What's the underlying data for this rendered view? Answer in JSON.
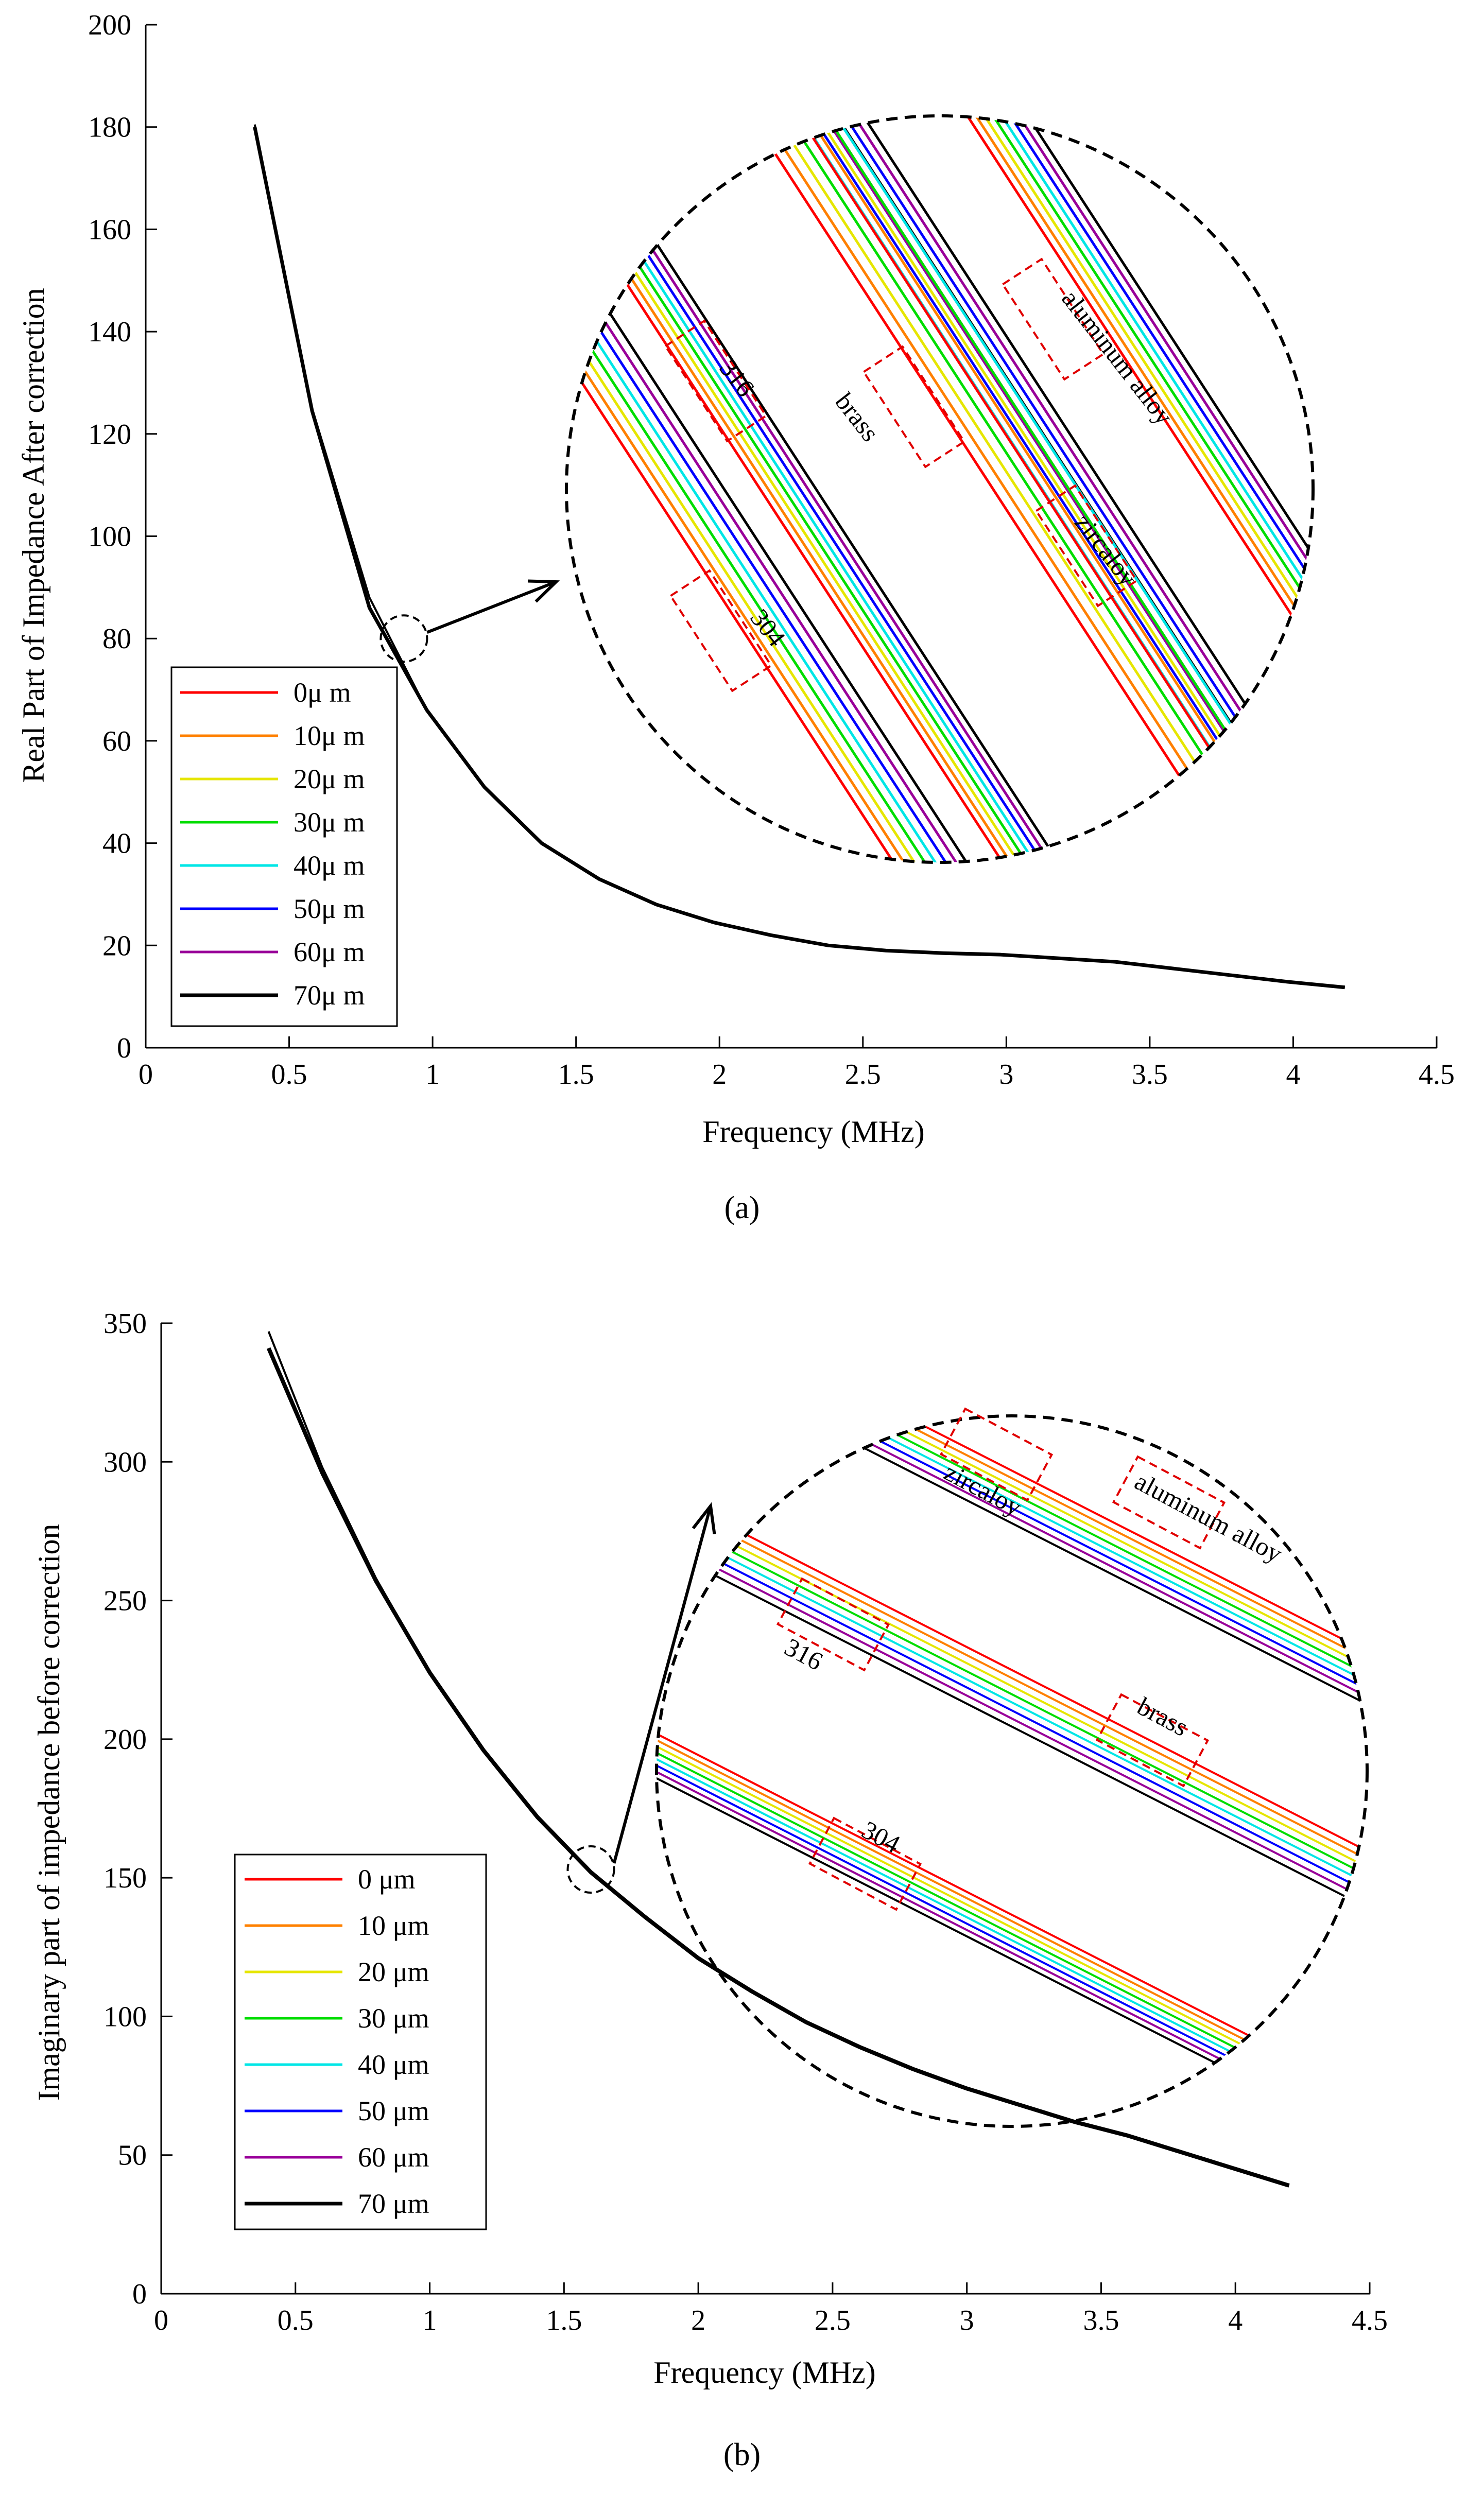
{
  "legend": {
    "a": [
      "0μ m",
      "10μ m",
      "20μ m",
      "30μ m",
      "40μ m",
      "50μ m",
      "60μ m",
      "70μ m"
    ],
    "b": [
      "0 μm",
      "10 μm",
      "20 μm",
      "30 μm",
      "40 μm",
      "50 μm",
      "60 μm",
      "70 μm"
    ]
  },
  "colors": [
    "#ff0000",
    "#ff8000",
    "#e6e600",
    "#00dd00",
    "#00e6e6",
    "#0000ff",
    "#990099",
    "#000000"
  ],
  "materials": [
    "aluminum alloy",
    "zircaloy",
    "316",
    "304",
    "brass"
  ],
  "chart_data": [
    {
      "type": "line",
      "caption": "(a)",
      "title": "",
      "xlabel": "Frequency (MHz)",
      "ylabel": "Real Part of Impedance After correction",
      "xlim": [
        0,
        4.5
      ],
      "ylim": [
        0,
        200
      ],
      "xticks": [
        0,
        0.5,
        1,
        1.5,
        2,
        2.5,
        3,
        3.5,
        4,
        4.5
      ],
      "xtick_labels": [
        "0",
        "0.5",
        "1",
        "1.5",
        "2",
        "2.5",
        "3",
        "3.5",
        "4",
        "4.5"
      ],
      "yticks": [
        0,
        20,
        40,
        60,
        80,
        100,
        120,
        140,
        160,
        180,
        200
      ],
      "ytick_labels": [
        "0",
        "20",
        "40",
        "60",
        "80",
        "100",
        "120",
        "140",
        "160",
        "180",
        "200"
      ],
      "x": [
        0.38,
        0.58,
        0.78,
        0.98,
        1.18,
        1.38,
        1.58,
        1.78,
        1.98,
        2.18,
        2.38,
        2.58,
        2.78,
        2.98,
        3.18,
        3.38,
        3.58,
        3.78,
        3.98,
        4.18
      ],
      "series": [
        {
          "name": "0μ m",
          "values": [
            180.5,
            125,
            88,
            66,
            51,
            40,
            33,
            28,
            24.5,
            22,
            20,
            19,
            18.5,
            18.2,
            17.5,
            16.8,
            15.5,
            14.2,
            12.9,
            11.8
          ]
        },
        {
          "name": "70μ m",
          "values": [
            180,
            124.5,
            86,
            66,
            51,
            40,
            33,
            28,
            24.5,
            22,
            20,
            19,
            18.5,
            18.2,
            17.5,
            16.8,
            15.5,
            14.2,
            12.9,
            11.8
          ]
        }
      ],
      "zoom_marker": {
        "x": 0.9,
        "y": 80
      },
      "inset_labels": [
        "aluminum alloy",
        "316",
        "brass",
        "zircaloy",
        "304"
      ]
    },
    {
      "type": "line",
      "caption": "(b)",
      "title": "",
      "xlabel": "Frequency (MHz)",
      "ylabel": "Imaginary part of impedance before correction",
      "xlim": [
        0,
        4.5
      ],
      "ylim": [
        0,
        350
      ],
      "xticks": [
        0,
        0.5,
        1,
        1.5,
        2,
        2.5,
        3,
        3.5,
        4,
        4.5
      ],
      "xtick_labels": [
        "0",
        "0.5",
        "1",
        "1.5",
        "2",
        "2.5",
        "3",
        "3.5",
        "4",
        "4.5"
      ],
      "yticks": [
        0,
        50,
        100,
        150,
        200,
        250,
        300,
        350
      ],
      "ytick_labels": [
        "0",
        "50",
        "100",
        "150",
        "200",
        "250",
        "300",
        "350"
      ],
      "x": [
        0.4,
        0.6,
        0.8,
        1.0,
        1.2,
        1.4,
        1.6,
        1.8,
        2.0,
        2.2,
        2.4,
        2.6,
        2.8,
        3.0,
        3.2,
        3.4,
        3.6,
        3.8,
        4.0,
        4.2
      ],
      "series": [
        {
          "name": "0 μm",
          "values": [
            347,
            298,
            258,
            224,
            196,
            172,
            152,
            136,
            121,
            109,
            98,
            89,
            81,
            74,
            68,
            62,
            57,
            51,
            45,
            39
          ]
        },
        {
          "name": "70 μm",
          "values": [
            341,
            296,
            257,
            224,
            196,
            172,
            152,
            136,
            121,
            109,
            98,
            89,
            81,
            74,
            68,
            62,
            57,
            51,
            45,
            39
          ]
        }
      ],
      "zoom_marker": {
        "x": 1.6,
        "y": 153
      },
      "inset_labels": [
        "zircaloy",
        "aluminum alloy",
        "316",
        "brass",
        "304"
      ]
    }
  ]
}
